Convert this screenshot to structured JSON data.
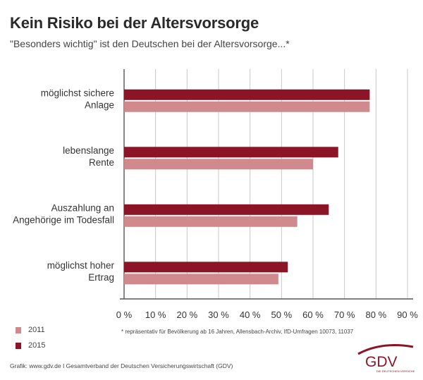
{
  "title": "Kein Risiko bei der Altersvorsorge",
  "subtitle": "\"Besonders wichtig\" ist den Deutschen bei der Altersvorsorge...*",
  "chart_data": {
    "type": "bar",
    "orientation": "horizontal",
    "categories": [
      [
        "möglichst sichere",
        "Anlage"
      ],
      [
        "lebenslange",
        "Rente"
      ],
      [
        "Auszahlung an",
        "Angehörige im Todesfall"
      ],
      [
        "möglichst hoher",
        "Ertrag"
      ]
    ],
    "series": [
      {
        "name": "2015",
        "color": "#8b1527",
        "values": [
          78,
          68,
          65,
          52
        ]
      },
      {
        "name": "2011",
        "color": "#d08a8e",
        "values": [
          78,
          60,
          55,
          49
        ]
      }
    ],
    "xlim": [
      0,
      90
    ],
    "xticks": [
      0,
      10,
      20,
      30,
      40,
      50,
      60,
      70,
      80,
      90
    ],
    "tick_suffix": " %",
    "grid": true,
    "legend_placement": "bottom-left"
  },
  "legend": [
    {
      "label": "2011",
      "color": "#d08a8e"
    },
    {
      "label": "2015",
      "color": "#8b1527"
    }
  ],
  "footnote": "* repräsentativ für Bevölkerung ab 16 Jahren, Allensbach-Archiv, IfD-Umfragen 10073, 11037",
  "source": "Grafik: www.gdv.de I Gesamtverband der Deutschen Versicherungswirtschaft (GDV)",
  "logo": {
    "text": "GDV",
    "tagline": "DIE DEUTSCHEN VERSICHERER",
    "color": "#8b1527"
  }
}
